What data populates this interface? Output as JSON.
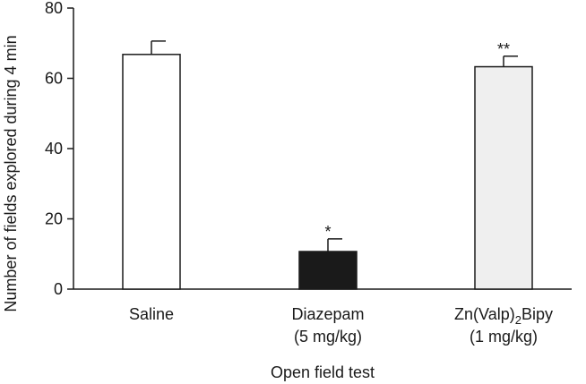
{
  "chart_data": {
    "type": "bar",
    "title": "",
    "xlabel": "Open field test",
    "ylabel": "Number of fields explored during 4 min",
    "ylim": [
      0,
      80
    ],
    "yticks": [
      0,
      20,
      40,
      60,
      80
    ],
    "categories": [
      {
        "lines": [
          "Saline"
        ],
        "sub": null
      },
      {
        "lines": [
          "Diazepam",
          "(5 mg/kg)"
        ],
        "sub": null
      },
      {
        "lines": [
          "Zn(Valp)2Bipy",
          "(1 mg/kg)"
        ],
        "sub": {
          "base": "Zn(Valp)",
          "subscript": "2",
          "after": "Bipy"
        }
      }
    ],
    "series": [
      {
        "name": "Number of fields explored",
        "values": [
          66.8,
          10.7,
          63.3
        ],
        "errors": [
          3.8,
          3.6,
          3.0
        ],
        "colors": [
          "#ffffff",
          "#1a1a1a",
          "#efefef"
        ],
        "significance": [
          "",
          "*",
          "**"
        ]
      }
    ],
    "grid": false,
    "legend": "none"
  }
}
